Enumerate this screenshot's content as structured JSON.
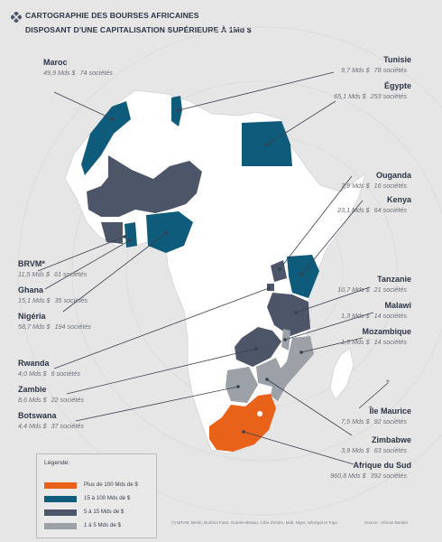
{
  "title": {
    "line1": "CARTOGRAPHIE DES BOURSES AFRICAINES",
    "line2": "DISPOSANT D'UNE CAPITALISATION SUPÉRIEURE À 1Md $"
  },
  "colors": {
    "background": "#e6e6e6",
    "land": "#ffffff",
    "cat1": "#e8621a",
    "cat2": "#0f5b7b",
    "cat3": "#4d5668",
    "cat4": "#9ca0a7",
    "text": "#2a3445"
  },
  "markets": [
    {
      "name": "Maroc",
      "value": "49,9 Mds $",
      "companies": "74 sociétés"
    },
    {
      "name": "Tunisie",
      "value": "9,7 Mds $",
      "companies": "78 sociétés"
    },
    {
      "name": "Égypte",
      "value": "65,1 Mds $",
      "companies": "253 sociétés"
    },
    {
      "name": "Ouganda",
      "value": "7,9 Mds $",
      "companies": "16 sociétés"
    },
    {
      "name": "Kenya",
      "value": "23,1 Mds $",
      "companies": "64 sociétés"
    },
    {
      "name": "BRVM*",
      "value": "11,5 Mds $",
      "companies": "61 sociétés"
    },
    {
      "name": "Ghana",
      "value": "15,1 Mds $",
      "companies": "35 sociétés"
    },
    {
      "name": "Nigéria",
      "value": "58,7 Mds $",
      "companies": "194 sociétés"
    },
    {
      "name": "Tanzanie",
      "value": "10,7 Mds $",
      "companies": "21 sociétés"
    },
    {
      "name": "Malawi",
      "value": "1,3 Mds $",
      "companies": "14 sociétés"
    },
    {
      "name": "Mozambique",
      "value": "1,3 Mds $",
      "companies": "14 sociétés"
    },
    {
      "name": "Rwanda",
      "value": "4,0 Mds $",
      "companies": "6 sociétés"
    },
    {
      "name": "Zambie",
      "value": "8,6 Mds $",
      "companies": "22 sociétés"
    },
    {
      "name": "Botswana",
      "value": "4,4 Mds $",
      "companies": "37 sociétés"
    },
    {
      "name": "Île Maurice",
      "value": "7,5 Mds $",
      "companies": "92 sociétés"
    },
    {
      "name": "Zimbabwe",
      "value": "3,9 Mds $",
      "companies": "63 sociétés"
    },
    {
      "name": "Afrique du Sud",
      "value": "960,8 Mds $",
      "companies": "392 sociétés"
    }
  ],
  "legend": {
    "title": "Légende:",
    "items": [
      {
        "label": "Plus de 100 Mds de $",
        "color": "#e8621a"
      },
      {
        "label": "15 à 100 Mds de $",
        "color": "#0f5b7b"
      },
      {
        "label": "5 à 15 Mds de $",
        "color": "#4d5668"
      },
      {
        "label": "1 à 5 Mds de $",
        "color": "#9ca0a7"
      }
    ]
  },
  "footnote": "(*) BRVM: Benin, Burkina Faso, Guinée-Bissau, Côte d'Ivoire, Mali, Niger, Sénégal et Togo.",
  "source": "Source : African Banker"
}
